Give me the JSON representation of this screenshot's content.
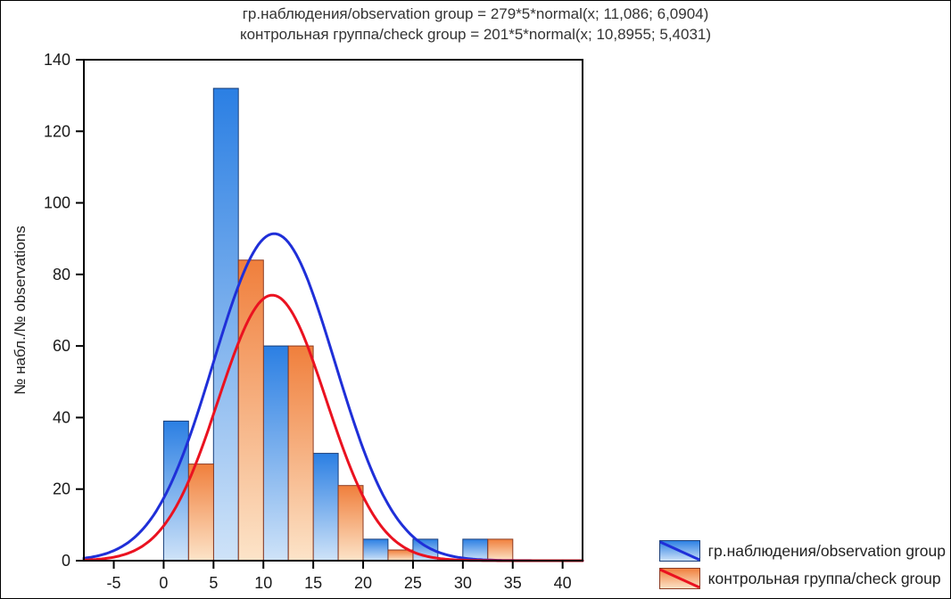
{
  "chart_data": {
    "type": "bar",
    "subtype": "overlaid-histograms-with-normal-curves",
    "title_line1": "гр.наблюдения/observation group = 279*5*normal(x; 11,086; 6,0904)",
    "title_line2": "контрольная группа/check group = 201*5*normal(x; 10,8955; 5,4031)",
    "xlabel": "",
    "ylabel": "№ набл./№ observations",
    "x_ticks": [
      -5,
      0,
      5,
      10,
      15,
      20,
      25,
      30,
      35,
      40
    ],
    "y_ticks": [
      0,
      20,
      40,
      60,
      80,
      100,
      120,
      140
    ],
    "xlim": [
      -8,
      42
    ],
    "ylim": [
      0,
      140
    ],
    "grid": "off",
    "legend_position": "bottom-right-outside",
    "bin_width": 5,
    "bin_starts": [
      0,
      5,
      10,
      15,
      20,
      25,
      30
    ],
    "series": [
      {
        "name": "гр.наблюдения/observation group",
        "values": [
          39,
          132,
          60,
          30,
          6,
          6,
          6
        ],
        "curve": {
          "n": 279,
          "bin_width": 5,
          "mean": 11.086,
          "sd": 6.0904,
          "peak": 91
        },
        "bar_top_color": "#2b7fe3",
        "bar_bottom_color": "#cfe3f8",
        "bar_border_color": "#1a3e78",
        "curve_color": "#1f2fd8"
      },
      {
        "name": "контрольная группа/check group",
        "values": [
          27,
          84,
          60,
          21,
          3,
          0,
          6
        ],
        "curve": {
          "n": 201,
          "bin_width": 5,
          "mean": 10.8955,
          "sd": 5.4031,
          "peak": 74
        },
        "bar_top_color": "#f07f3c",
        "bar_bottom_color": "#fce4c9",
        "bar_border_color": "#8c3b22",
        "curve_color": "#ea1220"
      }
    ],
    "frame_color": "#000000",
    "tick_label_color": "#1a1a1a"
  }
}
